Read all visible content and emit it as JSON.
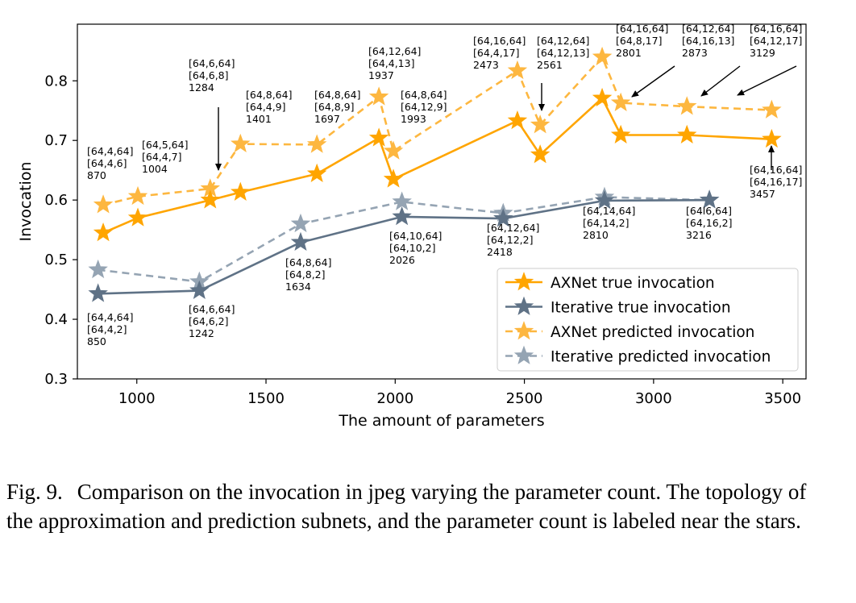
{
  "chart_data": {
    "type": "line",
    "xlabel": "The amount of parameters",
    "ylabel": "Invocation",
    "xlim": [
      770,
      3590
    ],
    "ylim": [
      0.3,
      0.895
    ],
    "xticks": [
      1000,
      1500,
      2000,
      2500,
      3000,
      3500
    ],
    "xtick_labels": [
      "1000",
      "1500",
      "2000",
      "2500",
      "3000",
      "3500"
    ],
    "yticks": [
      0.3,
      0.4,
      0.5,
      0.6,
      0.7,
      0.8
    ],
    "ytick_labels": [
      "0.3",
      "0.4",
      "0.5",
      "0.6",
      "0.7",
      "0.8"
    ],
    "grid": false,
    "legend_position": "lower-right",
    "series": [
      {
        "name": "AXNet true invocation",
        "color": "#FFA500",
        "style": "solid",
        "marker": "star",
        "x": [
          870,
          1004,
          1284,
          1401,
          1697,
          1937,
          1993,
          2473,
          2561,
          2801,
          2873,
          3129,
          3457
        ],
        "y": [
          0.545,
          0.57,
          0.6,
          0.613,
          0.644,
          0.704,
          0.635,
          0.733,
          0.676,
          0.771,
          0.709,
          0.709,
          0.702
        ]
      },
      {
        "name": "Iterative true invocation",
        "color": "#5F7286",
        "style": "solid",
        "marker": "star",
        "x": [
          850,
          1242,
          1634,
          2026,
          2418,
          2810,
          3216
        ],
        "y": [
          0.443,
          0.448,
          0.529,
          0.572,
          0.569,
          0.599,
          0.6
        ]
      },
      {
        "name": "AXNet predicted invocation",
        "color": "#FDB740",
        "style": "dashed",
        "marker": "star",
        "x": [
          870,
          1004,
          1284,
          1401,
          1697,
          1937,
          1993,
          2473,
          2561,
          2801,
          2873,
          3129,
          3457
        ],
        "y": [
          0.592,
          0.606,
          0.619,
          0.694,
          0.693,
          0.773,
          0.682,
          0.817,
          0.726,
          0.84,
          0.763,
          0.757,
          0.751
        ]
      },
      {
        "name": "Iterative predicted invocation",
        "color": "#95A4B3",
        "style": "dashed",
        "marker": "star",
        "x": [
          850,
          1242,
          1634,
          2026,
          2418,
          2810,
          3216
        ],
        "y": [
          0.483,
          0.463,
          0.56,
          0.597,
          0.578,
          0.605,
          0.6
        ]
      }
    ],
    "annotations": [
      {
        "lines": [
          "[64,4,64]",
          "[64,4,6]",
          "870"
        ]
      },
      {
        "lines": [
          "[64,5,64]",
          "[64,4,7]",
          "1004"
        ]
      },
      {
        "lines": [
          "[64,6,64]",
          "[64,6,8]",
          "1284"
        ]
      },
      {
        "lines": [
          "[64,8,64]",
          "[64,4,9]",
          "1401"
        ]
      },
      {
        "lines": [
          "[64,8,64]",
          "[64,8,9]",
          "1697"
        ]
      },
      {
        "lines": [
          "[64,12,64]",
          "[64,4,13]",
          "1937"
        ]
      },
      {
        "lines": [
          "[64,8,64]",
          "[64,12,9]",
          "1993"
        ]
      },
      {
        "lines": [
          "[64,16,64]",
          "[64,4,17]",
          "2473"
        ]
      },
      {
        "lines": [
          "[64,12,64]",
          "[64,12,13]",
          "2561"
        ]
      },
      {
        "lines": [
          "[64,16,64]",
          "[64,8,17]",
          "2801"
        ]
      },
      {
        "lines": [
          "[64,12,64]",
          "[64,16,13]",
          "2873"
        ]
      },
      {
        "lines": [
          "[64,16,64]",
          "[64,12,17]",
          "3129"
        ]
      },
      {
        "lines": [
          "[64,16,64]",
          "[64,16,17]",
          "3457"
        ]
      },
      {
        "lines": [
          "[64,4,64]",
          "[64,4,2]",
          "850"
        ]
      },
      {
        "lines": [
          "[64,6,64]",
          "[64,6,2]",
          "1242"
        ]
      },
      {
        "lines": [
          "[64,8,64]",
          "[64,8,2]",
          "1634"
        ]
      },
      {
        "lines": [
          "[64,10,64]",
          "[64,10,2]",
          "2026"
        ]
      },
      {
        "lines": [
          "[64,12,64]",
          "[64,12,2]",
          "2418"
        ]
      },
      {
        "lines": [
          "[64,14,64]",
          "[64,14,2]",
          "2810"
        ]
      },
      {
        "lines": [
          "[64l6,64]",
          "[64,16,2]",
          "3216"
        ]
      }
    ]
  },
  "caption": {
    "label": "Fig. 9.",
    "text": "Comparison on the invocation in jpeg varying the parameter count. The topology of the approximation and prediction subnets, and the parameter count is labeled near the stars."
  }
}
